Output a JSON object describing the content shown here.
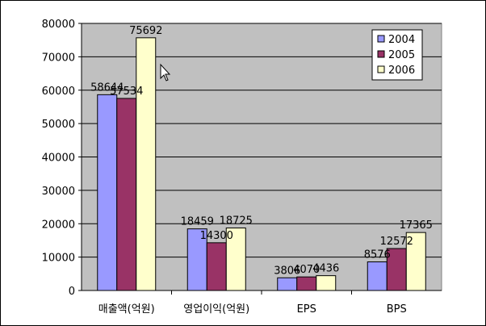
{
  "chart_data": {
    "type": "bar",
    "categories": [
      "매출액(억원)",
      "영업이익(억원)",
      "EPS",
      "BPS"
    ],
    "series": [
      {
        "name": "2004",
        "values": [
          58644,
          18459,
          3806,
          8576
        ],
        "color": "#9999ff"
      },
      {
        "name": "2005",
        "values": [
          57534,
          14300,
          4070,
          12572
        ],
        "color": "#993366"
      },
      {
        "name": "2006",
        "values": [
          75692,
          18725,
          4436,
          17365
        ],
        "color": "#ffffcc"
      }
    ],
    "ylim": [
      0,
      80000
    ],
    "yticks": [
      0,
      10000,
      20000,
      30000,
      40000,
      50000,
      60000,
      70000,
      80000
    ],
    "grid": true,
    "legend": "top-right",
    "plot_background": "#c0c0c0",
    "title": "",
    "xlabel": "",
    "ylabel": ""
  }
}
